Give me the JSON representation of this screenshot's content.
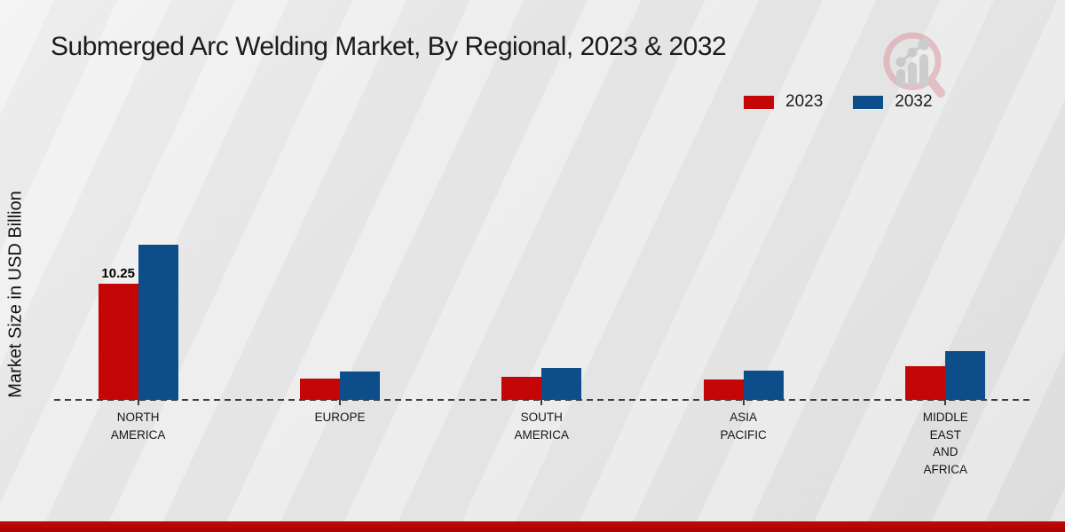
{
  "page": {
    "title": "Submerged Arc Welding Market, By Regional, 2023 & 2032"
  },
  "colors": {
    "series_2023": "#c40606",
    "series_2032": "#0d4d8a",
    "bottom_strip": "#b30606",
    "background": "#e9e9e9",
    "baseline": "#3c3c3c",
    "title_text": "#1c1c1c"
  },
  "logo": {
    "name": "magnifier-bar-chart-logo"
  },
  "chart_data": {
    "type": "bar",
    "title": "Submerged Arc Welding Market, By Regional, 2023 & 2032",
    "xlabel": "",
    "ylabel": "Market Size in USD Billion",
    "categories": [
      "NORTH AMERICA",
      "EUROPE",
      "SOUTH AMERICA",
      "ASIA PACIFIC",
      "MIDDLE EAST AND AFRICA"
    ],
    "series": [
      {
        "name": "2023",
        "color": "#c40606",
        "values": [
          10.25,
          1.9,
          2.05,
          1.8,
          3.0
        ],
        "labels": [
          "10.25",
          "",
          "",
          "",
          ""
        ]
      },
      {
        "name": "2032",
        "color": "#0d4d8a",
        "values": [
          13.7,
          2.5,
          2.8,
          2.6,
          4.3
        ],
        "labels": [
          "",
          "",
          "",
          "",
          ""
        ]
      }
    ],
    "ylim": [
      0,
      16
    ],
    "y_axis_ticks_visible": false,
    "baseline_style": "dashed",
    "grid": false,
    "legend_position": "top-right"
  }
}
